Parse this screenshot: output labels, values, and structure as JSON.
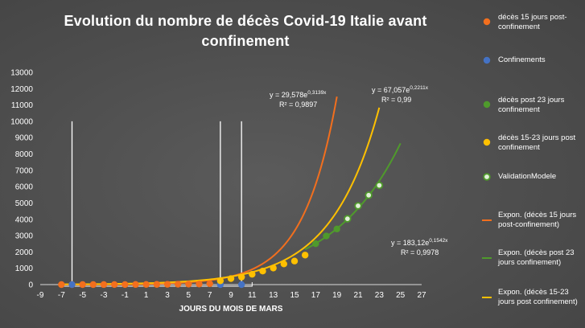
{
  "chart_data": {
    "type": "scatter",
    "title": "Evolution du nombre de décès Covid-19 Italie avant confinement",
    "xlabel": "JOURS DU MOIS DE MARS",
    "ylabel": "",
    "xlim": [
      -9,
      27
    ],
    "ylim": [
      0,
      13000
    ],
    "xticks": [
      -9,
      -7,
      -5,
      -3,
      -1,
      1,
      3,
      5,
      7,
      9,
      11,
      13,
      15,
      17,
      19,
      21,
      23,
      25,
      27
    ],
    "yticks": [
      0,
      1000,
      2000,
      3000,
      4000,
      5000,
      6000,
      7000,
      8000,
      9000,
      10000,
      11000,
      12000,
      13000
    ],
    "grid": false,
    "legend_position": "right",
    "series": [
      {
        "name": "décès 15 jours post-confinement",
        "kind": "points",
        "color": "#f26f1e",
        "x": [
          -7,
          -6,
          -5,
          -4,
          -3,
          -2,
          -1,
          0,
          1,
          2,
          3,
          4,
          5,
          6,
          7
        ],
        "y": [
          0,
          0,
          0,
          0,
          1,
          2,
          3,
          7,
          10,
          12,
          17,
          21,
          29,
          34,
          52
        ]
      },
      {
        "name": "Confinements",
        "kind": "points",
        "color": "#4472c4",
        "x": [
          -6,
          8,
          10
        ],
        "y": [
          0,
          0,
          0
        ]
      },
      {
        "name": "décès post 23 jours confinement",
        "kind": "points",
        "color": "#4f9a2c",
        "x": [
          17,
          18,
          19
        ],
        "y": [
          2503,
          2978,
          3405
        ]
      },
      {
        "name": "décès 15-23 jours post confinement",
        "kind": "points",
        "color": "#ffc000",
        "x": [
          8,
          9,
          10,
          11,
          12,
          13,
          14,
          15,
          16
        ],
        "y": [
          233,
          366,
          463,
          631,
          827,
          1016,
          1266,
          1441,
          1809
        ]
      },
      {
        "name": "ValidationModele",
        "kind": "points",
        "color": "#e2f0d9",
        "stroke": "#4f9a2c",
        "x": [
          20,
          21,
          22,
          23
        ],
        "y": [
          4032,
          4825,
          5476,
          6077
        ]
      },
      {
        "name": "Expon. (décès 15 jours post-confinement)",
        "kind": "exp",
        "color": "#f26f1e",
        "a": 29.578,
        "b": 0.3139,
        "x_from": -7,
        "x_to": 19
      },
      {
        "name": "Expon. (décès post 23 jours confinement)",
        "kind": "exp",
        "color": "#4f9a2c",
        "a": 183.12,
        "b": 0.1542,
        "x_from": 16,
        "x_to": 25
      },
      {
        "name": "Expon. (décès 15-23 jours post confinement)",
        "kind": "exp",
        "color": "#ffc000",
        "a": 67.057,
        "b": 0.2211,
        "x_from": -7,
        "x_to": 23
      }
    ],
    "vertical_lines": [
      {
        "x": -6,
        "y_top": 10000,
        "color": "#ffffff"
      },
      {
        "x": 8,
        "y_top": 10000,
        "color": "#ffffff"
      },
      {
        "x": 10,
        "y_top": 10000,
        "color": "#ffffff"
      }
    ],
    "bracket": {
      "x_from": -7,
      "x_to": 11,
      "color": "#ffffff"
    },
    "annotations": [
      {
        "id": "eq-orange",
        "line1_base": "y = 29,578e",
        "line1_exp": "0,3139x",
        "line2": "R² = 0,9897"
      },
      {
        "id": "eq-yellow",
        "line1_base": "y = 67,057e",
        "line1_exp": "0,2211x",
        "line2": "R² = 0,99"
      },
      {
        "id": "eq-green",
        "line1_base": "y = 183,12e",
        "line1_exp": "0,1542x",
        "line2": "R² = 0,9978"
      }
    ]
  },
  "legend": {
    "items": [
      {
        "label": "décès 15 jours post-confinement",
        "marker": "dot",
        "color": "#f26f1e"
      },
      {
        "label": "Confinements",
        "marker": "dot",
        "color": "#4472c4"
      },
      {
        "label": "décès post 23 jours confinement",
        "marker": "dot",
        "color": "#4f9a2c"
      },
      {
        "label": "décès 15-23 jours post confinement",
        "marker": "dot",
        "color": "#ffc000"
      },
      {
        "label": "ValidationModele",
        "marker": "ring",
        "color": "#e2f0d9",
        "stroke": "#4f9a2c"
      },
      {
        "label": "Expon. (décès 15 jours post-confinement)",
        "marker": "line",
        "color": "#f26f1e"
      },
      {
        "label": "Expon. (décès post 23 jours confinement)",
        "marker": "line",
        "color": "#4f9a2c"
      },
      {
        "label": "Expon. (décès 15-23 jours post confinement)",
        "marker": "line",
        "color": "#ffc000"
      }
    ]
  }
}
